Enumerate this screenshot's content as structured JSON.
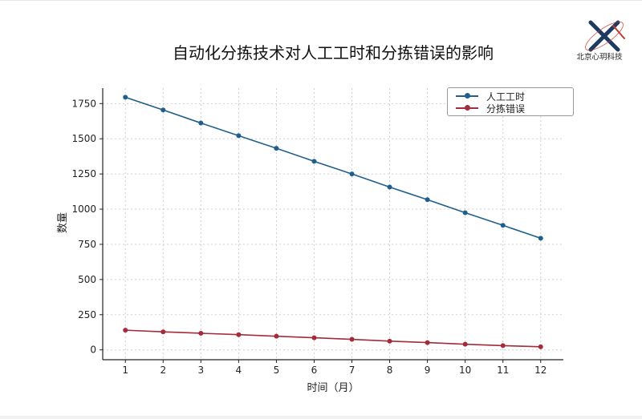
{
  "header": {
    "title": "自动化分拣技术对人工工时和分拣错误的影响"
  },
  "brand": {
    "name": "北京心玥科技",
    "logo_icon": "crossed-lines-logo-icon",
    "colors": {
      "dark": "#1f3a5f",
      "accent": "#c0392b"
    }
  },
  "chart_data": {
    "type": "line",
    "title": "自动化分拣技术对人工工时和分拣错误的影响",
    "xlabel": "时间（月）",
    "ylabel": "数量",
    "x": [
      1,
      2,
      3,
      4,
      5,
      6,
      7,
      8,
      9,
      10,
      11,
      12
    ],
    "xticks": [
      "1",
      "2",
      "3",
      "4",
      "5",
      "6",
      "7",
      "8",
      "9",
      "10",
      "11",
      "12"
    ],
    "yticks": [
      "0",
      "250",
      "500",
      "750",
      "1000",
      "1250",
      "1500",
      "1750"
    ],
    "ytick_values": [
      0,
      250,
      500,
      750,
      1000,
      1250,
      1500,
      1750
    ],
    "xlim": [
      0.4,
      12.6
    ],
    "ylim": [
      -70,
      1860
    ],
    "grid": true,
    "legend_position": "top-right",
    "series": [
      {
        "name": "人工工时",
        "color": "#1f5f8b",
        "values": [
          1795,
          1705,
          1612,
          1522,
          1432,
          1340,
          1250,
          1157,
          1067,
          975,
          885,
          793
        ]
      },
      {
        "name": "分拣错误",
        "color": "#a52a3a",
        "values": [
          140,
          128,
          118,
          108,
          97,
          86,
          75,
          62,
          52,
          40,
          30,
          22
        ]
      }
    ]
  }
}
